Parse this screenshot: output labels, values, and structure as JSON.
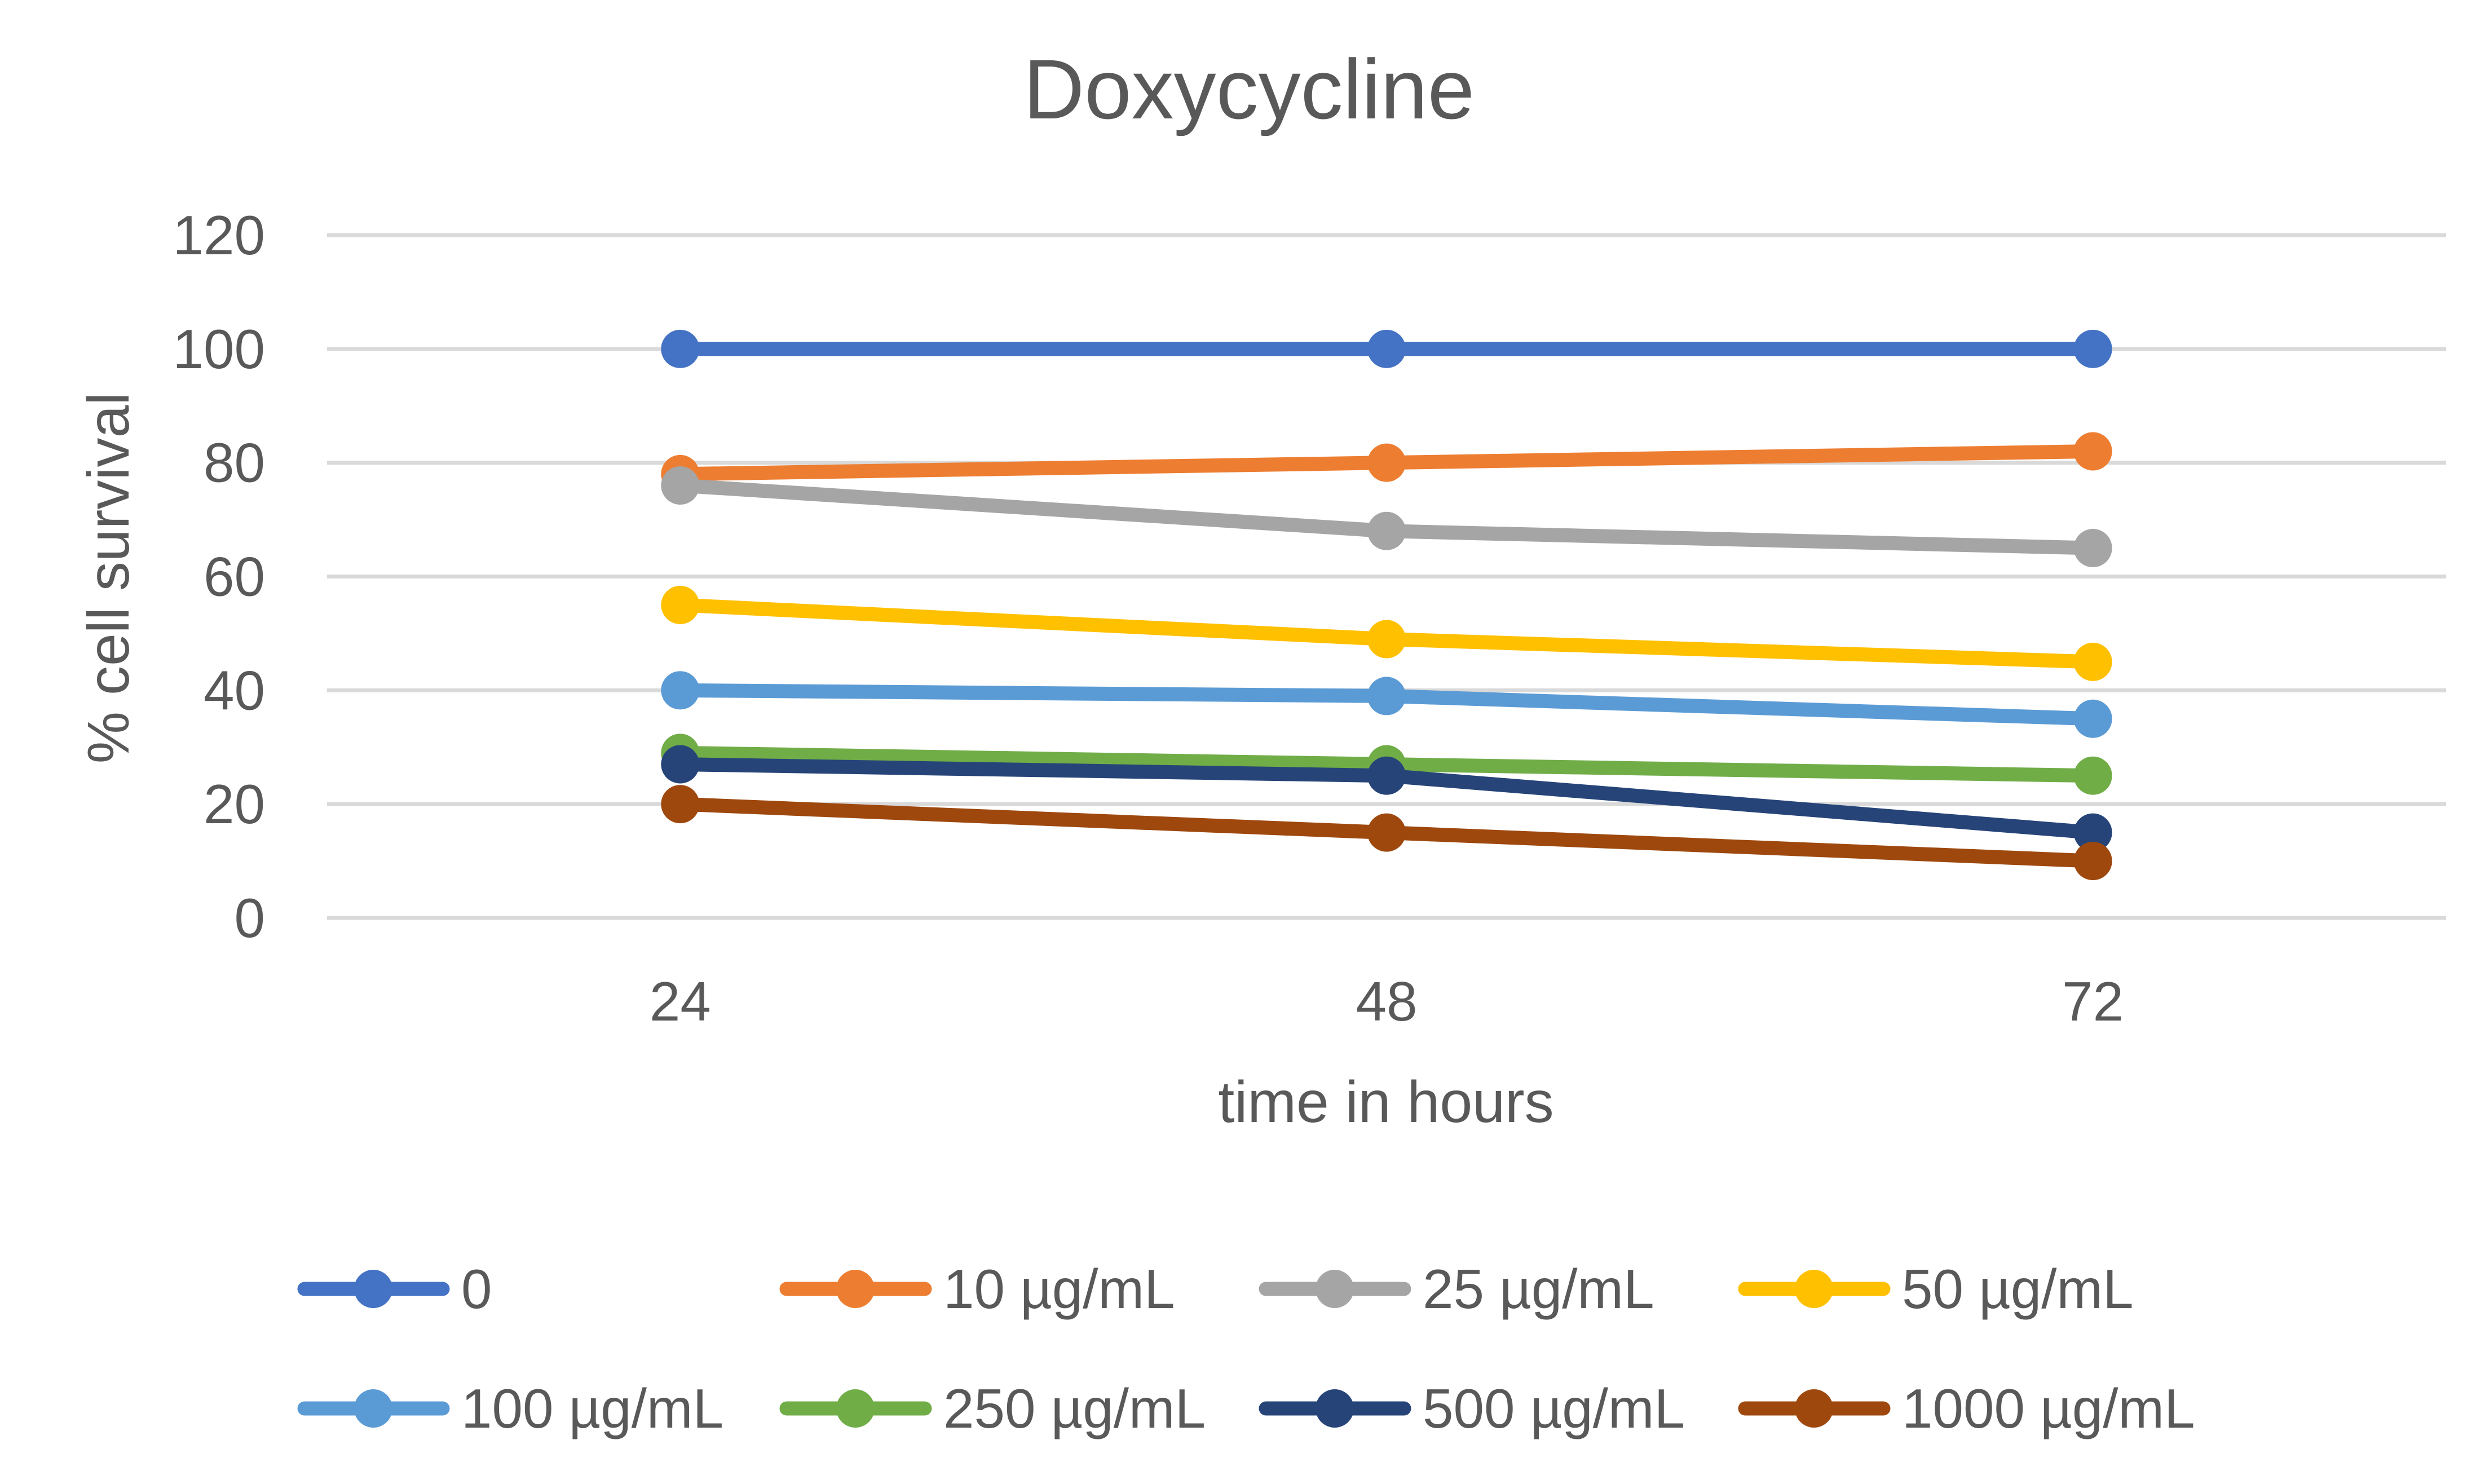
{
  "chart_data": {
    "type": "line",
    "title": "Doxycycline",
    "xlabel": "time in hours",
    "ylabel": "% cell survival",
    "categories": [
      "24",
      "48",
      "72"
    ],
    "yticks": [
      "0",
      "20",
      "40",
      "60",
      "80",
      "100",
      "120"
    ],
    "ylim": [
      0,
      120
    ],
    "grid": true,
    "legend_position": "bottom",
    "series": [
      {
        "name": "0",
        "color": "#4472c4",
        "values": [
          100,
          100,
          100
        ]
      },
      {
        "name": "10 µg/mL",
        "color": "#ed7d31",
        "values": [
          78,
          80,
          82
        ]
      },
      {
        "name": "25 µg/mL",
        "color": "#a5a5a5",
        "values": [
          76,
          68,
          65
        ]
      },
      {
        "name": "50 µg/mL",
        "color": "#ffc000",
        "values": [
          55,
          49,
          45
        ]
      },
      {
        "name": "100 µg/mL",
        "color": "#5b9bd5",
        "values": [
          40,
          39,
          35
        ]
      },
      {
        "name": "250 µg/mL",
        "color": "#70ad47",
        "values": [
          29,
          27,
          25
        ]
      },
      {
        "name": "500 µg/mL",
        "color": "#264478",
        "values": [
          27,
          25,
          15
        ]
      },
      {
        "name": "1000 µg/mL",
        "color": "#9e480e",
        "values": [
          20,
          15,
          10
        ]
      }
    ]
  }
}
